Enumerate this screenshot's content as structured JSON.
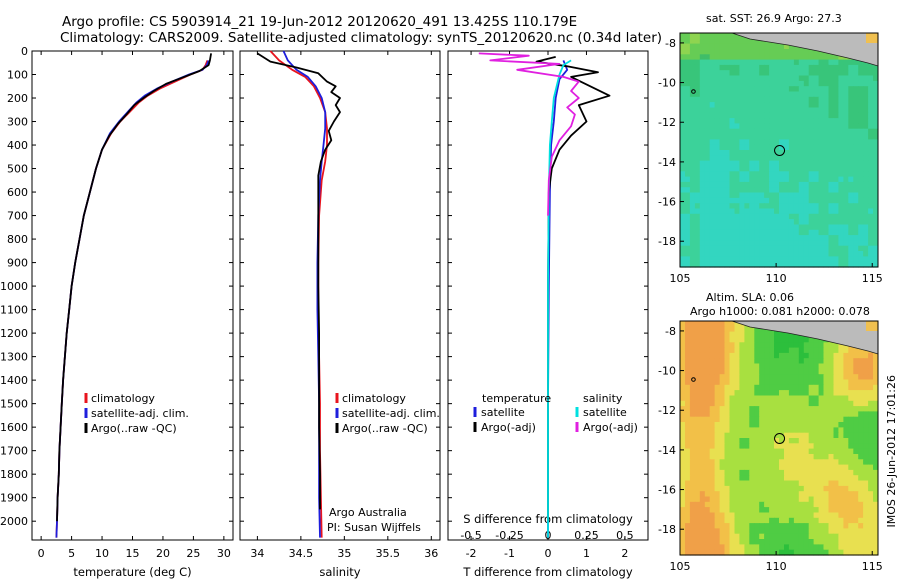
{
  "header": {
    "title_line1": "Argo profile: CS 5903914_21 19-Jun-2012 20120620_491 13.425S 110.179E",
    "title_line2": "Climatology: CARS2009. Satellite-adjusted climatology: synTS_20120620.nc (0.34d later)"
  },
  "footer": {
    "stamp": "IMOS 26-Jun-2012 17:01:26",
    "credit_line1": "Argo Australia",
    "credit_line2": "PI: Susan Wijffels"
  },
  "colors": {
    "climatology": "#e8141e",
    "satellite": "#1e1edc",
    "argo": "#000000",
    "satellite_cyan": "#00e0e0",
    "argo_magenta": "#e020e0"
  },
  "chart_data": [
    {
      "type": "line",
      "id": "temperature",
      "xlabel": "temperature (deg C)",
      "ylabel": "",
      "xlim": [
        -1.5,
        31.5
      ],
      "ylim": [
        2080,
        0
      ],
      "xticks": [
        0,
        5,
        10,
        15,
        20,
        25,
        30
      ],
      "yticks": [
        0,
        100,
        200,
        300,
        400,
        500,
        600,
        700,
        800,
        900,
        1000,
        1100,
        1200,
        1300,
        1400,
        1500,
        1600,
        1700,
        1800,
        1900,
        2000
      ],
      "legend": {
        "position": "lower-center",
        "entries": [
          "climatology",
          "satellite-adj. clim.",
          "Argo(..raw -QC)"
        ]
      },
      "series": [
        {
          "name": "climatology",
          "color": "#e8141e",
          "points": [
            [
              27.3,
              40
            ],
            [
              27.0,
              60
            ],
            [
              26.5,
              80
            ],
            [
              24.5,
              100
            ],
            [
              22.0,
              130
            ],
            [
              19.5,
              160
            ],
            [
              17.5,
              190
            ],
            [
              16.0,
              220
            ],
            [
              14.5,
              260
            ],
            [
              13.0,
              300
            ],
            [
              11.5,
              350
            ],
            [
              10.0,
              420
            ],
            [
              9.0,
              500
            ],
            [
              8.0,
              600
            ],
            [
              7.0,
              700
            ],
            [
              6.3,
              800
            ],
            [
              5.6,
              900
            ],
            [
              5.0,
              1000
            ],
            [
              4.6,
              1100
            ],
            [
              4.2,
              1200
            ],
            [
              3.9,
              1300
            ],
            [
              3.6,
              1400
            ],
            [
              3.4,
              1500
            ],
            [
              3.2,
              1600
            ],
            [
              3.0,
              1700
            ],
            [
              2.9,
              1800
            ],
            [
              2.7,
              1900
            ],
            [
              2.6,
              2000
            ],
            [
              2.5,
              2070
            ]
          ]
        },
        {
          "name": "satellite-adj. clim.",
          "color": "#1e1edc",
          "points": [
            [
              27.5,
              40
            ],
            [
              27.2,
              60
            ],
            [
              26.5,
              80
            ],
            [
              24.3,
              100
            ],
            [
              21.5,
              130
            ],
            [
              19.0,
              160
            ],
            [
              17.0,
              190
            ],
            [
              15.6,
              220
            ],
            [
              14.2,
              260
            ],
            [
              12.8,
              300
            ],
            [
              11.3,
              350
            ],
            [
              10.0,
              420
            ],
            [
              9.0,
              500
            ],
            [
              8.0,
              600
            ],
            [
              7.0,
              700
            ],
            [
              6.3,
              800
            ],
            [
              5.6,
              900
            ],
            [
              5.0,
              1000
            ],
            [
              4.6,
              1100
            ],
            [
              4.2,
              1200
            ],
            [
              3.9,
              1300
            ],
            [
              3.6,
              1400
            ],
            [
              3.4,
              1500
            ],
            [
              3.2,
              1600
            ],
            [
              3.0,
              1700
            ],
            [
              2.9,
              1800
            ],
            [
              2.7,
              1900
            ],
            [
              2.6,
              2000
            ],
            [
              2.5,
              2070
            ]
          ]
        },
        {
          "name": "Argo(..raw -QC)",
          "color": "#000000",
          "points": [
            [
              27.9,
              10
            ],
            [
              27.7,
              40
            ],
            [
              27.5,
              60
            ],
            [
              26.0,
              85
            ],
            [
              24.5,
              100
            ],
            [
              22.5,
              120
            ],
            [
              20.5,
              140
            ],
            [
              18.5,
              170
            ],
            [
              16.8,
              200
            ],
            [
              15.3,
              230
            ],
            [
              14.0,
              270
            ],
            [
              12.6,
              310
            ],
            [
              11.2,
              360
            ],
            [
              10.0,
              420
            ],
            [
              9.0,
              500
            ],
            [
              8.0,
              600
            ],
            [
              7.0,
              700
            ],
            [
              6.3,
              800
            ],
            [
              5.6,
              900
            ],
            [
              5.0,
              1000
            ],
            [
              4.6,
              1100
            ],
            [
              4.2,
              1200
            ],
            [
              3.9,
              1300
            ],
            [
              3.6,
              1400
            ],
            [
              3.4,
              1500
            ],
            [
              3.2,
              1600
            ],
            [
              3.0,
              1700
            ],
            [
              2.9,
              1800
            ],
            [
              2.7,
              1900
            ],
            [
              2.6,
              2000
            ]
          ]
        }
      ]
    },
    {
      "type": "line",
      "id": "salinity",
      "xlabel": "salinity",
      "ylabel": "",
      "xlim": [
        33.8,
        36.1
      ],
      "ylim": [
        2080,
        0
      ],
      "xticks": [
        34,
        34.5,
        35,
        35.5,
        36
      ],
      "legend": {
        "position": "lower-center",
        "entries": [
          "climatology",
          "satellite-adj. clim.",
          "Argo(..raw -QC)"
        ]
      },
      "series": [
        {
          "name": "climatology",
          "color": "#e8141e",
          "points": [
            [
              34.15,
              0
            ],
            [
              34.25,
              40
            ],
            [
              34.4,
              80
            ],
            [
              34.55,
              110
            ],
            [
              34.65,
              150
            ],
            [
              34.72,
              200
            ],
            [
              34.78,
              260
            ],
            [
              34.8,
              330
            ],
            [
              34.8,
              400
            ],
            [
              34.78,
              470
            ],
            [
              34.74,
              550
            ],
            [
              34.71,
              700
            ],
            [
              34.7,
              900
            ],
            [
              34.7,
              1100
            ],
            [
              34.71,
              1300
            ],
            [
              34.72,
              1500
            ],
            [
              34.72,
              1700
            ],
            [
              34.73,
              1900
            ],
            [
              34.74,
              2070
            ]
          ]
        },
        {
          "name": "satellite-adj. clim.",
          "color": "#1e1edc",
          "points": [
            [
              34.3,
              0
            ],
            [
              34.35,
              40
            ],
            [
              34.45,
              80
            ],
            [
              34.58,
              110
            ],
            [
              34.67,
              150
            ],
            [
              34.74,
              200
            ],
            [
              34.78,
              260
            ],
            [
              34.78,
              330
            ],
            [
              34.76,
              400
            ],
            [
              34.74,
              470
            ],
            [
              34.72,
              550
            ],
            [
              34.7,
              700
            ],
            [
              34.69,
              900
            ],
            [
              34.69,
              1100
            ],
            [
              34.7,
              1300
            ],
            [
              34.71,
              1500
            ],
            [
              34.71,
              1700
            ],
            [
              34.71,
              1900
            ],
            [
              34.72,
              2070
            ]
          ]
        },
        {
          "name": "Argo(..raw -QC)",
          "color": "#000000",
          "points": [
            [
              34.0,
              10
            ],
            [
              34.15,
              45
            ],
            [
              34.45,
              70
            ],
            [
              34.7,
              95
            ],
            [
              34.8,
              130
            ],
            [
              34.9,
              150
            ],
            [
              34.85,
              175
            ],
            [
              34.95,
              200
            ],
            [
              34.9,
              230
            ],
            [
              34.95,
              260
            ],
            [
              34.88,
              300
            ],
            [
              34.82,
              340
            ],
            [
              34.85,
              380
            ],
            [
              34.78,
              420
            ],
            [
              34.73,
              470
            ],
            [
              34.7,
              530
            ],
            [
              34.7,
              600
            ],
            [
              34.7,
              800
            ],
            [
              34.7,
              1000
            ],
            [
              34.71,
              1200
            ],
            [
              34.71,
              1400
            ],
            [
              34.71,
              1600
            ],
            [
              34.72,
              1800
            ],
            [
              34.72,
              1950
            ]
          ]
        }
      ]
    },
    {
      "type": "line",
      "id": "difference",
      "xlabel": "T difference from climatology",
      "xlabel_top": "S difference from climatology",
      "ylabel": "",
      "xlim": [
        -2.6,
        2.6
      ],
      "ylim": [
        2080,
        0
      ],
      "xticks": [
        -2,
        -1,
        0,
        1,
        2
      ],
      "xticks_s": [
        -0.5,
        -0.25,
        0,
        0.25,
        0.5
      ],
      "legend": {
        "position": "lower-center",
        "temperature_header": "temperature",
        "salinity_header": "salinity",
        "entries": [
          "satellite",
          "Argo(-adj)",
          "satellite",
          "Argo(-adj)"
        ]
      },
      "series": [
        {
          "name": "satellite",
          "group": "temperature",
          "color": "#1e1edc",
          "points": [
            [
              0.4,
              40
            ],
            [
              0.5,
              80
            ],
            [
              0.3,
              120
            ],
            [
              0.2,
              200
            ],
            [
              0.15,
              300
            ],
            [
              0.08,
              400
            ],
            [
              0.05,
              600
            ],
            [
              0.02,
              1000
            ],
            [
              0.0,
              1500
            ],
            [
              0.0,
              2070
            ]
          ]
        },
        {
          "name": "Argo(-adj)",
          "group": "temperature",
          "color": "#000000",
          "points": [
            [
              0.2,
              25
            ],
            [
              -0.3,
              45
            ],
            [
              0.5,
              65
            ],
            [
              1.3,
              90
            ],
            [
              0.6,
              110
            ],
            [
              1.6,
              190
            ],
            [
              0.8,
              230
            ],
            [
              1.0,
              300
            ],
            [
              0.6,
              360
            ],
            [
              0.3,
              420
            ],
            [
              0.1,
              500
            ],
            [
              0.02,
              600
            ],
            [
              0.0,
              1000
            ],
            [
              0.0,
              2000
            ]
          ]
        },
        {
          "name": "satellite",
          "group": "salinity",
          "color": "#00e0e0",
          "points": [
            [
              0.6,
              40
            ],
            [
              0.4,
              60
            ],
            [
              0.3,
              100
            ],
            [
              0.15,
              200
            ],
            [
              0.1,
              300
            ],
            [
              0.05,
              400
            ],
            [
              0.02,
              600
            ],
            [
              0.0,
              1000
            ],
            [
              0.0,
              2070
            ]
          ]
        },
        {
          "name": "Argo(-adj)",
          "group": "salinity",
          "color": "#e020e0",
          "points": [
            [
              -1.8,
              10
            ],
            [
              -0.5,
              20
            ],
            [
              -1.5,
              40
            ],
            [
              0.3,
              55
            ],
            [
              -0.8,
              80
            ],
            [
              0.4,
              110
            ],
            [
              0.8,
              130
            ],
            [
              0.6,
              170
            ],
            [
              0.8,
              200
            ],
            [
              0.5,
              240
            ],
            [
              0.7,
              270
            ],
            [
              0.6,
              320
            ],
            [
              0.3,
              380
            ],
            [
              0.1,
              450
            ],
            [
              0.02,
              550
            ],
            [
              0.0,
              700
            ]
          ]
        }
      ]
    },
    {
      "type": "heatmap",
      "id": "sst-map",
      "title": "sat. SST: 26.9 Argo: 27.3",
      "xlim": [
        105,
        115.3
      ],
      "ylim": [
        -19.3,
        -7.5
      ],
      "xticks": [
        105,
        110,
        115
      ],
      "yticks": [
        -8,
        -10,
        -12,
        -14,
        -16,
        -18
      ],
      "argo_location": {
        "lon": 110.179,
        "lat": -13.425
      }
    },
    {
      "type": "heatmap",
      "id": "sla-map",
      "title": "Altim. SLA: 0.06",
      "subtitle": "Argo h1000: 0.081 h2000: 0.078",
      "xlim": [
        105,
        115.3
      ],
      "ylim": [
        -19.3,
        -7.5
      ],
      "xticks": [
        105,
        110,
        115
      ],
      "yticks": [
        -8,
        -10,
        -12,
        -14,
        -16,
        -18
      ],
      "argo_location": {
        "lon": 110.179,
        "lat": -13.425
      }
    }
  ]
}
